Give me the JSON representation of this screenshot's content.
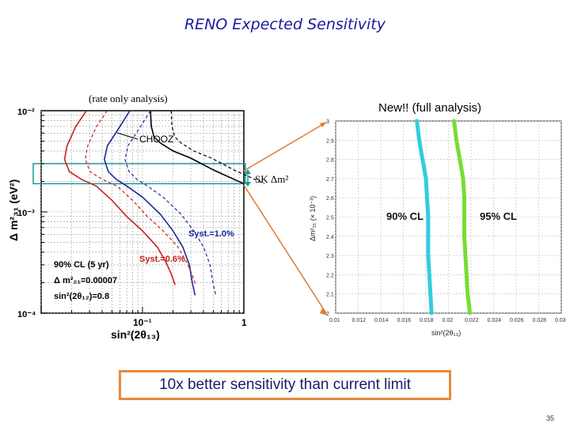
{
  "slide": {
    "title": "RENO Expected Sensitivity",
    "page_number": "35",
    "callout": "10x better sensitivity than current limit",
    "left_subtitle": "(rate only analysis)",
    "right_subtitle": "New!! (full analysis)",
    "sk_label": "SK Δm²"
  },
  "chart_data": [
    {
      "type": "line",
      "title": "(rate only analysis)",
      "xscale": "log",
      "yscale": "log",
      "xlim": [
        0.01,
        1
      ],
      "ylim": [
        0.0001,
        0.01
      ],
      "xlabel": "sin²(2θ₁₃)",
      "ylabel": "Δ m²₃₁ (eV²)",
      "x_ticks": [
        {
          "value": 0.1,
          "label": "10⁻¹"
        },
        {
          "value": 1,
          "label": "1"
        }
      ],
      "y_ticks": [
        {
          "value": 0.01,
          "label": "10⁻²"
        },
        {
          "value": 0.001,
          "label": "10⁻³"
        },
        {
          "value": 0.0001,
          "label": "10⁻⁴"
        }
      ],
      "annotations": {
        "chooz": "CHOOZ",
        "syst1": "Syst.=1.0%",
        "syst06": "Syst.=0.6%",
        "info1": "90% CL (5 yr)",
        "info2": "Δ m²₂₁=0.00007",
        "info3": "sin²(2θ₁₂)=0.8"
      },
      "sk_band_ylim": [
        0.0019,
        0.003
      ],
      "series": [
        {
          "name": "CHOOZ",
          "color": "#000000",
          "points": [
            [
              0.12,
              0.01
            ],
            [
              0.122,
              0.007
            ],
            [
              0.13,
              0.0055
            ],
            [
              0.15,
              0.0048
            ],
            [
              0.2,
              0.004
            ],
            [
              0.3,
              0.0034
            ],
            [
              0.5,
              0.0026
            ],
            [
              0.8,
              0.0021
            ],
            [
              1.0,
              0.0019
            ]
          ]
        },
        {
          "name": "Syst.=1.0%",
          "color": "#1a2a9a",
          "points": [
            [
              0.075,
              0.01
            ],
            [
              0.06,
              0.007
            ],
            [
              0.045,
              0.0045
            ],
            [
              0.042,
              0.0033
            ],
            [
              0.046,
              0.0025
            ],
            [
              0.055,
              0.0021
            ],
            [
              0.07,
              0.0018
            ],
            [
              0.1,
              0.0014
            ],
            [
              0.15,
              0.00095
            ],
            [
              0.2,
              0.00065
            ],
            [
              0.25,
              0.00045
            ],
            [
              0.29,
              0.0003
            ],
            [
              0.31,
              0.0002
            ],
            [
              0.33,
              0.00015
            ]
          ]
        },
        {
          "name": "Syst.=0.6%",
          "color": "#c82020",
          "points": [
            [
              0.028,
              0.01
            ],
            [
              0.022,
              0.007
            ],
            [
              0.018,
              0.0045
            ],
            [
              0.017,
              0.0033
            ],
            [
              0.019,
              0.0025
            ],
            [
              0.025,
              0.0021
            ],
            [
              0.035,
              0.0018
            ],
            [
              0.05,
              0.0013
            ],
            [
              0.07,
              0.0009
            ],
            [
              0.1,
              0.00065
            ],
            [
              0.14,
              0.00045
            ],
            [
              0.17,
              0.00032
            ],
            [
              0.19,
              0.00025
            ],
            [
              0.21,
              0.00019
            ]
          ]
        }
      ]
    },
    {
      "type": "line",
      "title": "New!! (full analysis)",
      "xlabel": "sin²(2θ₁₃)",
      "ylabel": "Δm²₃₁ (× 10⁻³)",
      "xlim": [
        0.01,
        0.03
      ],
      "ylim": [
        2.0,
        3.0
      ],
      "x_ticks": [
        "0.01",
        "0.012",
        "0.014",
        "0.016",
        "0.018",
        "0.02",
        "0.022",
        "0.024",
        "0.026",
        "0.028",
        "0.03"
      ],
      "y_ticks": [
        "2",
        "2.1",
        "2.2",
        "2.3",
        "2.4",
        "2.5",
        "2.6",
        "2.7",
        "2.8",
        "2.9",
        "3"
      ],
      "series": [
        {
          "name": "90% CL",
          "color": "#33ccdd",
          "points": [
            [
              0.0172,
              3.0
            ],
            [
              0.0174,
              2.9
            ],
            [
              0.0177,
              2.8
            ],
            [
              0.018,
              2.7
            ],
            [
              0.0181,
              2.6
            ],
            [
              0.0182,
              2.5
            ],
            [
              0.0182,
              2.4
            ],
            [
              0.0182,
              2.3
            ],
            [
              0.0183,
              2.2
            ],
            [
              0.0184,
              2.1
            ],
            [
              0.0185,
              2.0
            ]
          ]
        },
        {
          "name": "95% CL",
          "color": "#77dd33",
          "points": [
            [
              0.0205,
              3.0
            ],
            [
              0.0207,
              2.9
            ],
            [
              0.021,
              2.8
            ],
            [
              0.0213,
              2.7
            ],
            [
              0.0214,
              2.6
            ],
            [
              0.0214,
              2.5
            ],
            [
              0.0214,
              2.4
            ],
            [
              0.0215,
              2.3
            ],
            [
              0.0216,
              2.2
            ],
            [
              0.0217,
              2.1
            ],
            [
              0.0219,
              2.0
            ]
          ]
        }
      ]
    }
  ]
}
